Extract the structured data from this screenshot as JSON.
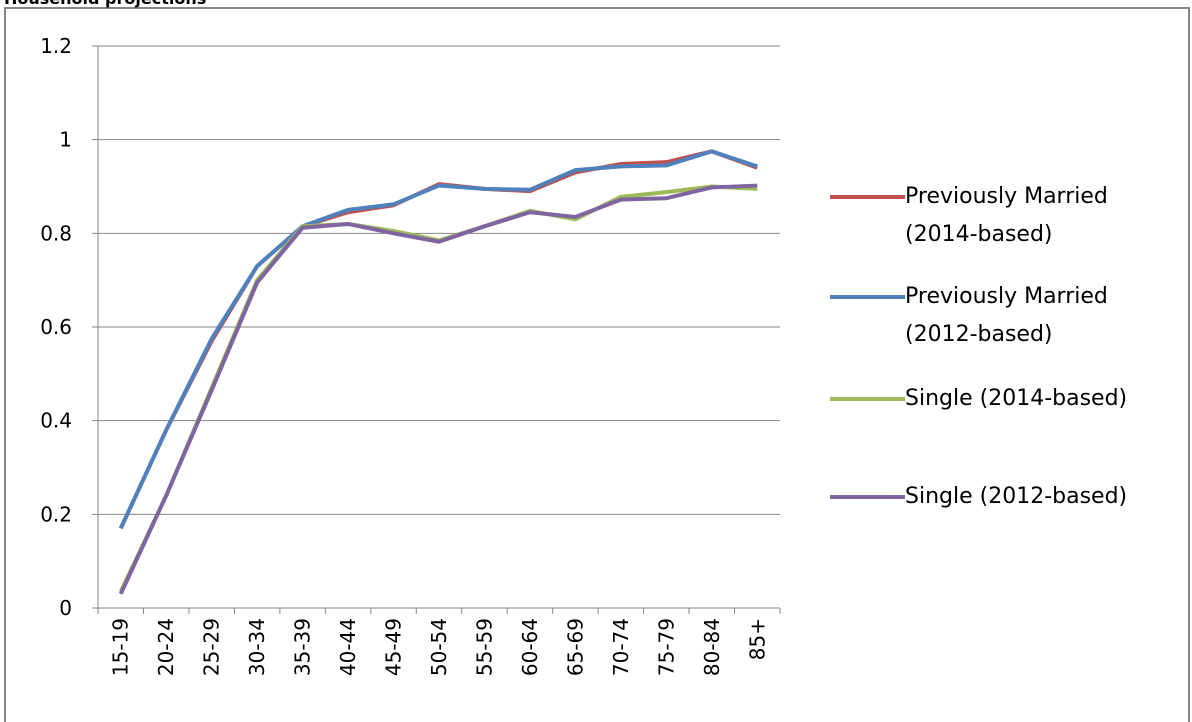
{
  "chart_data": {
    "type": "line",
    "title": "Household projections",
    "categories": [
      "15-19",
      "20-24",
      "25-29",
      "30-34",
      "35-39",
      "40-44",
      "45-49",
      "50-54",
      "55-59",
      "60-64",
      "65-69",
      "70-74",
      "75-79",
      "80-84",
      "85+"
    ],
    "series": [
      {
        "name": "Previously Married (2014-based)",
        "color": "#c0504d",
        "values": [
          0.17,
          0.38,
          0.57,
          0.73,
          0.815,
          0.845,
          0.86,
          0.905,
          0.895,
          0.89,
          0.93,
          0.948,
          0.952,
          0.975,
          0.94
        ]
      },
      {
        "name": "Previously Married (2012-based)",
        "color": "#4f81bd",
        "values": [
          0.17,
          0.38,
          0.575,
          0.73,
          0.815,
          0.85,
          0.862,
          0.902,
          0.895,
          0.893,
          0.935,
          0.943,
          0.945,
          0.975,
          0.943
        ]
      },
      {
        "name": "Single (2014-based)",
        "color": "#9bbb59",
        "values": [
          0.035,
          0.24,
          0.47,
          0.7,
          0.815,
          0.82,
          0.805,
          0.785,
          0.815,
          0.848,
          0.83,
          0.878,
          0.888,
          0.9,
          0.895
        ]
      },
      {
        "name": "Single (2012-based)",
        "color": "#8064a2",
        "values": [
          0.03,
          0.24,
          0.465,
          0.695,
          0.812,
          0.82,
          0.8,
          0.782,
          0.815,
          0.845,
          0.835,
          0.872,
          0.875,
          0.898,
          0.902
        ]
      }
    ],
    "ylim": [
      0,
      1.2
    ],
    "yticks": [
      0,
      0.2,
      0.4,
      0.6,
      0.8,
      1,
      1.2
    ],
    "grid": true,
    "legend": "right"
  }
}
